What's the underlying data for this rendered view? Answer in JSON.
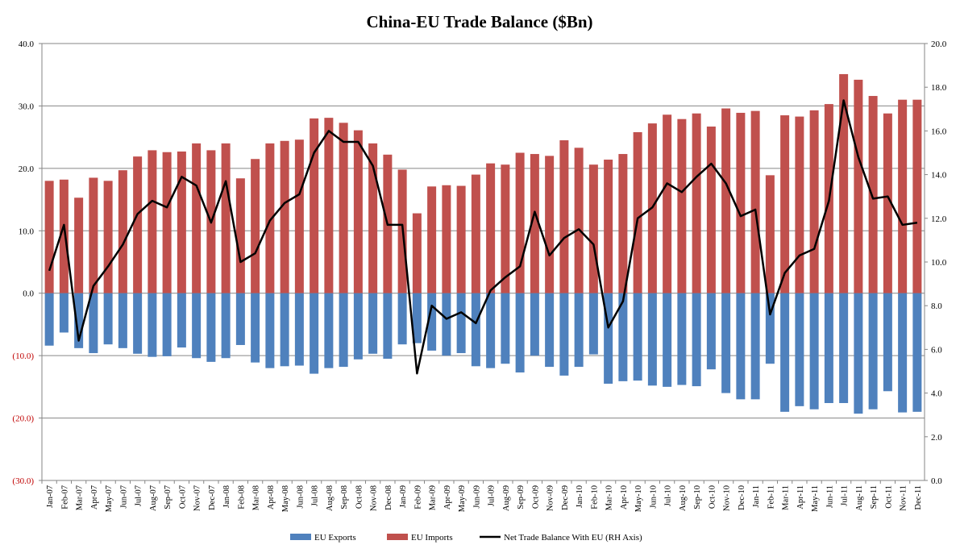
{
  "chart_data": {
    "type": "bar",
    "title": "China-EU Trade Balance ($Bn)",
    "xlabel": "",
    "ylabel": "",
    "ylim": [
      -30,
      40
    ],
    "y2lim": [
      0,
      20
    ],
    "y_ticks": [
      "40.0",
      "30.0",
      "20.0",
      "10.0",
      "0.0",
      "(10.0)",
      "(20.0)",
      "(30.0)"
    ],
    "y2_ticks": [
      "20.0",
      "18.0",
      "16.0",
      "14.0",
      "12.0",
      "10.0",
      "8.0",
      "6.0",
      "4.0",
      "2.0",
      "0.0"
    ],
    "grid": true,
    "legend_position": "bottom",
    "categories": [
      "Jan-07",
      "Feb-07",
      "Mar-07",
      "Apr-07",
      "May-07",
      "Jun-07",
      "Jul-07",
      "Aug-07",
      "Sep-07",
      "Oct-07",
      "Nov-07",
      "Dec-07",
      "Jan-08",
      "Feb-08",
      "Mar-08",
      "Apr-08",
      "May-08",
      "Jun-08",
      "Jul-08",
      "Aug-08",
      "Sep-08",
      "Oct-08",
      "Nov-08",
      "Dec-08",
      "Jan-09",
      "Feb-09",
      "Mar-09",
      "Apr-09",
      "May-09",
      "Jun-09",
      "Jul-09",
      "Aug-09",
      "Sep-09",
      "Oct-09",
      "Nov-09",
      "Dec-09",
      "Jan-10",
      "Feb-10",
      "Mar-10",
      "Apr-10",
      "May-10",
      "Jun-10",
      "Jul-10",
      "Aug-10",
      "Sep-10",
      "Oct-10",
      "Nov-10",
      "Dec-10",
      "Jan-11",
      "Feb-11",
      "Mar-11",
      "Apr-11",
      "May-11",
      "Jun-11",
      "Jul-11",
      "Aug-11",
      "Sep-11",
      "Oct-11",
      "Nov-11",
      "Dec-11"
    ],
    "series": [
      {
        "name": "EU Exports",
        "type": "bar",
        "axis": "left",
        "color": "#4f81bd",
        "values": [
          -8.4,
          -6.3,
          -8.8,
          -9.6,
          -8.2,
          -8.8,
          -9.7,
          -10.2,
          -10.1,
          -8.7,
          -10.4,
          -11.0,
          -10.4,
          -8.3,
          -11.1,
          -12.0,
          -11.7,
          -11.6,
          -12.9,
          -12.0,
          -11.8,
          -10.6,
          -9.7,
          -10.5,
          -8.2,
          -8.0,
          -9.2,
          -10.0,
          -9.6,
          -11.7,
          -12.0,
          -11.3,
          -12.7,
          -10.0,
          -11.8,
          -13.2,
          -11.8,
          -9.8,
          -14.5,
          -14.1,
          -14.0,
          -14.8,
          -15.0,
          -14.7,
          -14.9,
          -12.2,
          -16.0,
          -17.0,
          -17.0,
          -11.3,
          -19.0,
          -18.1,
          -18.6,
          -17.6,
          -17.6,
          -19.3,
          -18.6,
          -15.7,
          -19.1,
          -19.0
        ]
      },
      {
        "name": "EU Imports",
        "type": "bar",
        "axis": "left",
        "color": "#c0504d",
        "values": [
          18.0,
          18.2,
          15.3,
          18.5,
          18.0,
          19.7,
          21.9,
          22.9,
          22.6,
          22.7,
          24.0,
          22.9,
          24.0,
          18.4,
          21.5,
          24.0,
          24.4,
          24.6,
          28.0,
          28.1,
          27.3,
          26.1,
          24.0,
          22.2,
          19.8,
          12.8,
          17.1,
          17.3,
          17.2,
          19.0,
          20.8,
          20.6,
          22.5,
          22.3,
          22.0,
          24.5,
          23.3,
          20.6,
          21.4,
          22.3,
          25.8,
          27.2,
          28.6,
          27.9,
          28.8,
          26.7,
          29.6,
          28.9,
          29.2,
          18.9,
          28.5,
          28.3,
          29.3,
          30.3,
          35.1,
          34.2,
          31.6,
          28.8,
          31.0,
          31.0
        ]
      },
      {
        "name": "Net Trade Balance With EU (RH Axis)",
        "type": "line",
        "axis": "right",
        "color": "#000000",
        "values": [
          9.6,
          11.7,
          6.4,
          8.9,
          9.8,
          10.8,
          12.2,
          12.8,
          12.5,
          13.9,
          13.5,
          11.8,
          13.7,
          10.0,
          10.4,
          11.9,
          12.7,
          13.1,
          15.0,
          16.0,
          15.5,
          15.5,
          14.4,
          11.7,
          11.7,
          4.9,
          8.0,
          7.4,
          7.7,
          7.2,
          8.7,
          9.3,
          9.8,
          12.3,
          10.3,
          11.1,
          11.5,
          10.8,
          7.0,
          8.2,
          12.0,
          12.5,
          13.6,
          13.2,
          13.9,
          14.5,
          13.6,
          12.1,
          12.4,
          7.6,
          9.5,
          10.3,
          10.6,
          12.8,
          17.4,
          14.8,
          12.9,
          13.0,
          11.7,
          11.8
        ]
      }
    ]
  }
}
